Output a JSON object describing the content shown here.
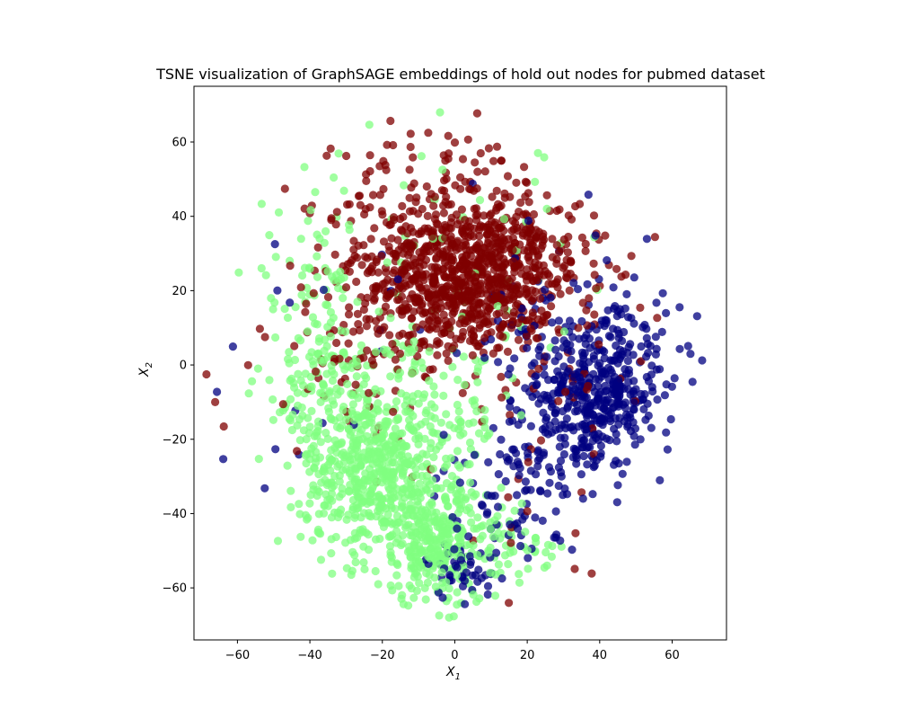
{
  "chart_data": {
    "type": "scatter",
    "title": "TSNE visualization of GraphSAGE embeddings of hold out nodes for pubmed dataset",
    "xlabel": "X",
    "xlabel_sub": "1",
    "ylabel": "X",
    "ylabel_sub": "2",
    "xlim": [
      -72,
      75
    ],
    "ylim": [
      -74,
      75
    ],
    "xticks": [
      -60,
      -40,
      -20,
      0,
      20,
      40,
      60
    ],
    "yticks": [
      -60,
      -40,
      -20,
      0,
      20,
      40,
      60
    ],
    "grid": false,
    "legend": "none",
    "marker_opacity": 0.75,
    "series": [
      {
        "color": "#7f0000",
        "clusters": [
          {
            "cx": 3,
            "cy": 22,
            "sx": 12,
            "sy": 10,
            "n": 620
          },
          {
            "cx": 18,
            "cy": 26,
            "sx": 10,
            "sy": 9,
            "n": 150
          },
          {
            "cx": -12,
            "cy": 30,
            "sx": 11,
            "sy": 11,
            "n": 140
          },
          {
            "cx": 0,
            "cy": 45,
            "sx": 15,
            "sy": 10,
            "n": 110
          },
          {
            "cx": -28,
            "cy": 10,
            "sx": 10,
            "sy": 14,
            "n": 70
          },
          {
            "cx": 30,
            "cy": 8,
            "sx": 16,
            "sy": 16,
            "n": 50
          },
          {
            "cx": 0,
            "cy": 0,
            "sx": 40,
            "sy": 35,
            "n": 60
          }
        ]
      },
      {
        "color": "#000080",
        "clusters": [
          {
            "cx": 40,
            "cy": -8,
            "sx": 8,
            "sy": 8,
            "n": 300
          },
          {
            "cx": 30,
            "cy": -22,
            "sx": 10,
            "sy": 9,
            "n": 90
          },
          {
            "cx": 25,
            "cy": 5,
            "sx": 9,
            "sy": 10,
            "n": 80
          },
          {
            "cx": 48,
            "cy": 10,
            "sx": 8,
            "sy": 10,
            "n": 60
          },
          {
            "cx": 15,
            "cy": -38,
            "sx": 10,
            "sy": 8,
            "n": 60
          },
          {
            "cx": 2,
            "cy": -55,
            "sx": 5,
            "sy": 4,
            "n": 45
          },
          {
            "cx": 0,
            "cy": 0,
            "sx": 40,
            "sy": 35,
            "n": 40
          }
        ]
      },
      {
        "color": "#80ff80",
        "clusters": [
          {
            "cx": -22,
            "cy": -30,
            "sx": 10,
            "sy": 10,
            "n": 450
          },
          {
            "cx": -5,
            "cy": -48,
            "sx": 9,
            "sy": 8,
            "n": 300
          },
          {
            "cx": -35,
            "cy": -8,
            "sx": 10,
            "sy": 12,
            "n": 150
          },
          {
            "cx": -40,
            "cy": 25,
            "sx": 9,
            "sy": 14,
            "n": 60
          },
          {
            "cx": -10,
            "cy": -15,
            "sx": 12,
            "sy": 10,
            "n": 150
          },
          {
            "cx": 15,
            "cy": -50,
            "sx": 8,
            "sy": 6,
            "n": 40
          },
          {
            "cx": 0,
            "cy": 20,
            "sx": 25,
            "sy": 20,
            "n": 60
          }
        ]
      }
    ]
  }
}
